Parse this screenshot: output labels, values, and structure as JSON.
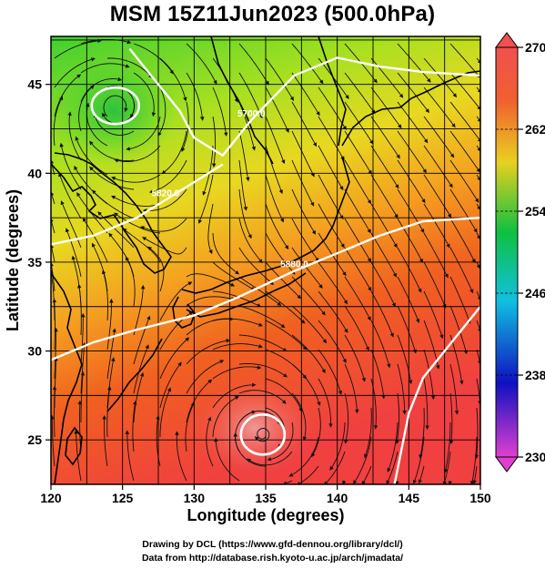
{
  "title": "MSM 15Z11Jun2023 (500.0hPa)",
  "chart_data": {
    "type": "heatmap",
    "title": "MSM 15Z11Jun2023 (500.0hPa)",
    "xlabel": "Longitude (degrees)",
    "ylabel": "Latitude  (degrees)",
    "xlim": [
      120,
      150
    ],
    "ylim": [
      22.5,
      47.7
    ],
    "x_ticks": [
      "120",
      "125",
      "130",
      "135",
      "140",
      "145",
      "150"
    ],
    "y_ticks": [
      "25",
      "30",
      "35",
      "40",
      "45"
    ],
    "grid": true,
    "colorbar": {
      "min": 230,
      "max": 270,
      "ticks": [
        "230",
        "238",
        "246",
        "254",
        "262",
        "270"
      ],
      "placement": "right",
      "colors": [
        "#e040d0",
        "#1010c0",
        "#10c0e0",
        "#10c040",
        "#e8d020",
        "#f06030",
        "#f05050"
      ]
    },
    "contours": [
      {
        "label": "5700.0",
        "points": [
          [
            125.5,
            47
          ],
          [
            127,
            45.5
          ],
          [
            129,
            43.5
          ],
          [
            130,
            42
          ],
          [
            132,
            41
          ],
          [
            134,
            43
          ],
          [
            137,
            45.5
          ],
          [
            140,
            46.5
          ],
          [
            143,
            46
          ],
          [
            146,
            45.7
          ],
          [
            150,
            45.5
          ]
        ]
      },
      {
        "label": "5820.0",
        "points": [
          [
            120,
            36
          ],
          [
            123,
            36.5
          ],
          [
            126,
            37.5
          ],
          [
            128,
            38.5
          ],
          [
            130,
            39.5
          ],
          [
            132,
            40.5
          ]
        ]
      },
      {
        "label": "5880.0",
        "points": [
          [
            120,
            29.5
          ],
          [
            123,
            30.5
          ],
          [
            126,
            31.2
          ],
          [
            130,
            32
          ],
          [
            133,
            33
          ],
          [
            137,
            34.5
          ],
          [
            140,
            35.5
          ],
          [
            143,
            36.5
          ],
          [
            146,
            37.3
          ],
          [
            150,
            37.5
          ]
        ]
      },
      {
        "label": "",
        "points": [
          [
            150,
            32.5
          ],
          [
            148,
            30.5
          ],
          [
            146,
            28.5
          ],
          [
            145,
            26.5
          ],
          [
            144.5,
            24.5
          ],
          [
            144,
            22.5
          ]
        ]
      }
    ],
    "lows": [
      {
        "lon": 124.5,
        "lat": 43.8
      },
      {
        "lon": 134.8,
        "lat": 25.3
      }
    ]
  },
  "credits": {
    "line1": "Drawing by DCL (https://www.gfd-dennou.org/library/dcl/)",
    "line2": "Data from http://database.rish.kyoto-u.ac.jp/arch/jmadata/"
  }
}
